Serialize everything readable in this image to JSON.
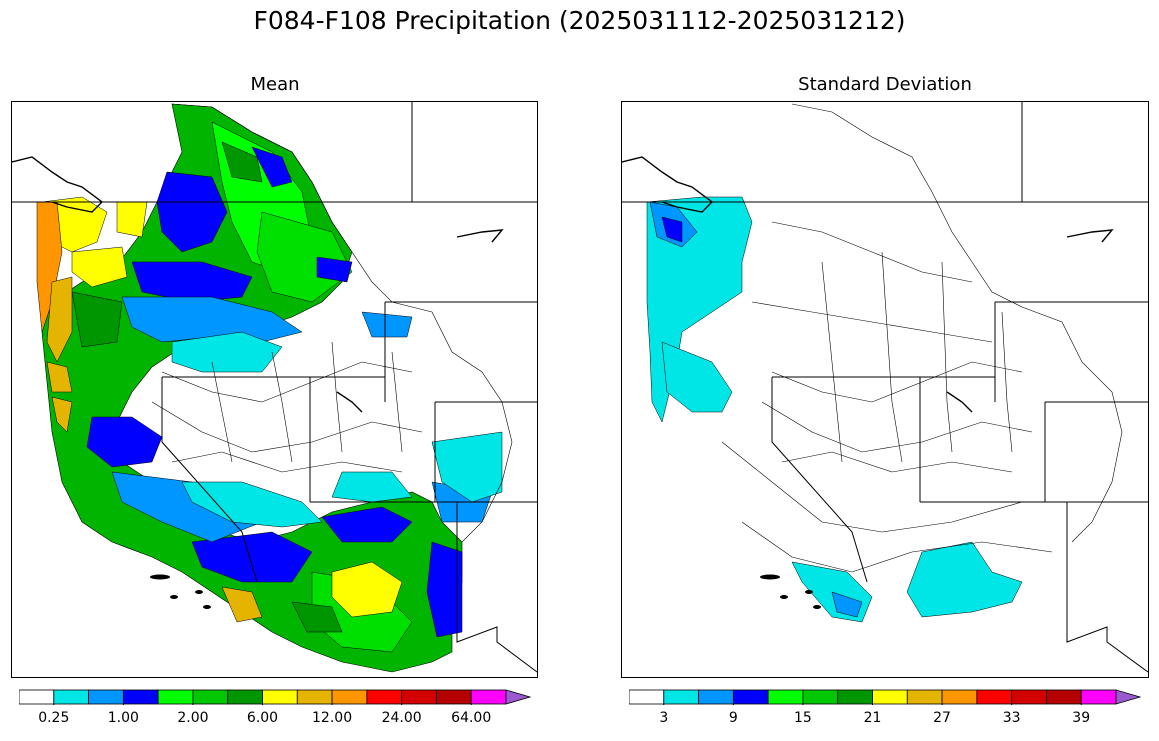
{
  "figure": {
    "title": "F084-F108 Precipitation (2025031112-2025031212)"
  },
  "panels": {
    "mean": {
      "title": "Mean"
    },
    "std": {
      "title": "Standard Deviation"
    }
  },
  "colorbars": {
    "mean": {
      "labels": [
        "0.25",
        "1.00",
        "2.00",
        "6.00",
        "12.00",
        "24.00",
        "64.00"
      ],
      "label_after_bin": [
        1,
        3,
        5,
        7,
        9,
        11,
        13
      ]
    },
    "std": {
      "labels": [
        "3",
        "9",
        "15",
        "21",
        "27",
        "33",
        "39"
      ],
      "label_after_bin": [
        1,
        3,
        5,
        7,
        9,
        11,
        13
      ]
    },
    "colors": [
      "#ffffff",
      "#00e5e5",
      "#0096ff",
      "#0000ff",
      "#00ff00",
      "#00c800",
      "#009600",
      "#ffff00",
      "#e5b400",
      "#ff9600",
      "#ff0000",
      "#d20000",
      "#b40000",
      "#ff00ff",
      "#9b59d0"
    ]
  }
}
